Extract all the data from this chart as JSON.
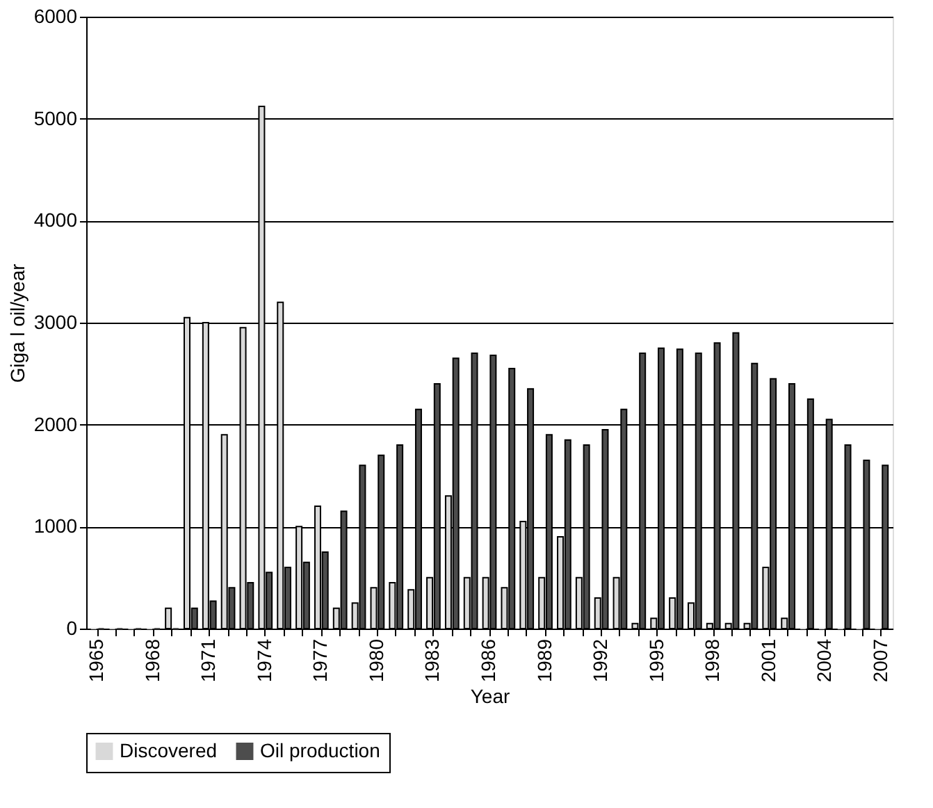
{
  "chart_data": {
    "type": "bar",
    "xlabel": "Year",
    "ylabel": "Giga l oil/year",
    "categories": [
      "1965",
      null,
      null,
      "1968",
      null,
      null,
      "1971",
      null,
      null,
      "1974",
      null,
      null,
      "1977",
      null,
      null,
      "1980",
      null,
      null,
      "1983",
      null,
      null,
      "1986",
      null,
      null,
      "1989",
      null,
      null,
      "1992",
      null,
      null,
      "1995",
      null,
      null,
      "1998",
      null,
      null,
      "2001",
      null,
      null,
      "2004",
      null,
      null,
      "2007"
    ],
    "series": [
      {
        "name": "Discovered",
        "color": "#d9d9d9",
        "values": [
          0,
          0,
          0,
          0,
          200,
          3050,
          3000,
          1900,
          2950,
          5120,
          3200,
          1000,
          1200,
          200,
          250,
          400,
          450,
          380,
          500,
          1300,
          500,
          500,
          400,
          1050,
          500,
          900,
          500,
          300,
          500,
          50,
          100,
          300,
          250,
          50,
          50,
          50,
          600,
          100,
          0,
          0,
          0,
          0,
          0
        ]
      },
      {
        "name": "Oil production",
        "color": "#4d4d4d",
        "values": [
          0,
          0,
          0,
          0,
          0,
          200,
          270,
          400,
          450,
          550,
          600,
          650,
          750,
          1150,
          1600,
          1700,
          1800,
          2150,
          2400,
          2650,
          2700,
          2680,
          2550,
          2350,
          1900,
          1850,
          1800,
          1950,
          2150,
          2700,
          2750,
          2740,
          2700,
          2800,
          2900,
          2600,
          2450,
          2400,
          2250,
          2050,
          1800,
          1650,
          1600
        ]
      }
    ],
    "ylim": [
      0,
      6000
    ],
    "yticks": [
      0,
      1000,
      2000,
      3000,
      4000,
      5000,
      6000
    ],
    "grid": "y",
    "legend": "bottom"
  }
}
